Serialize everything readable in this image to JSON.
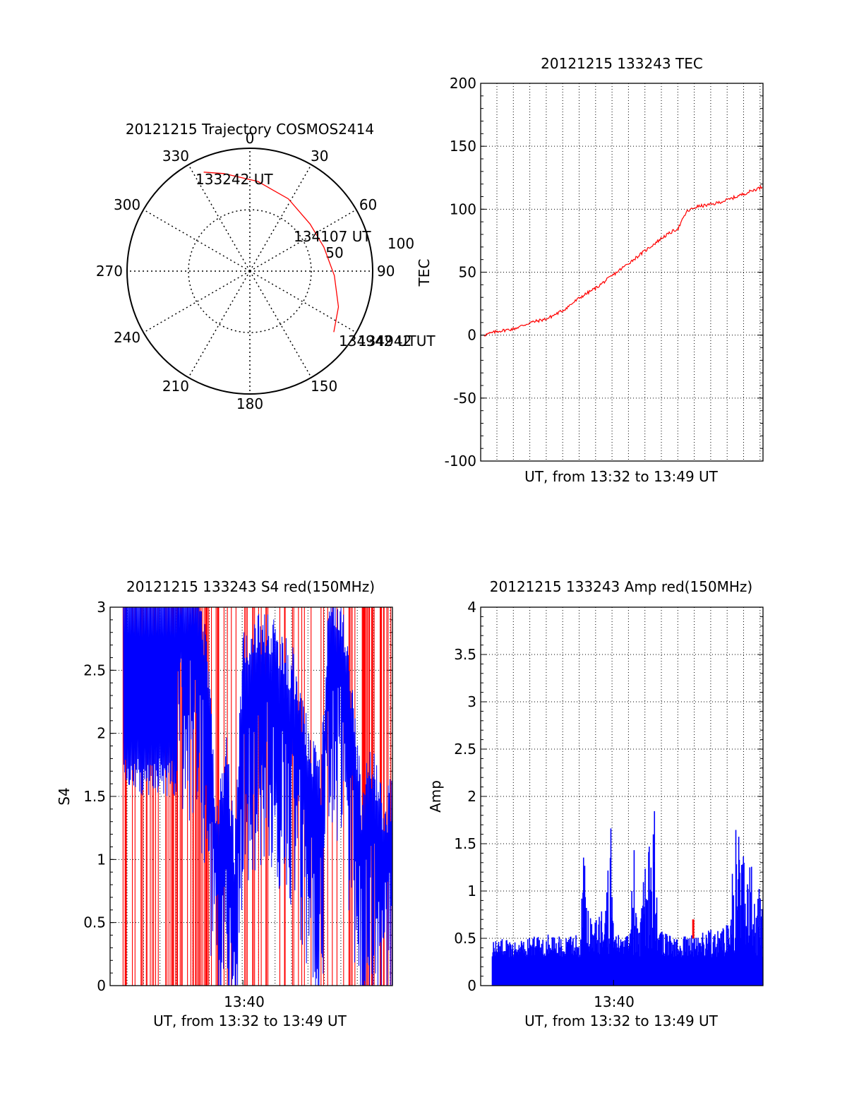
{
  "chart_data": [
    {
      "type": "polar",
      "title": "20121215 Trajectory COSMOS2414",
      "angle_labels": [
        "0",
        "30",
        "60",
        "90",
        "150",
        "180",
        "210",
        "240",
        "270",
        "300",
        "330"
      ],
      "ring_labels": [
        "50",
        "100"
      ],
      "trajectory": {
        "color": "#ff0000",
        "points": [
          {
            "az": 335,
            "el": 10
          },
          {
            "az": 345,
            "el": 16
          },
          {
            "az": 5,
            "el": 24
          },
          {
            "az": 28,
            "el": 30
          },
          {
            "az": 52,
            "el": 34
          },
          {
            "az": 72,
            "el": 33
          },
          {
            "az": 93,
            "el": 28
          },
          {
            "az": 112,
            "el": 20
          },
          {
            "az": 126,
            "el": 14
          }
        ]
      },
      "annotations": [
        "133242 UT",
        "134107 UT",
        "134942 UT",
        "134942 UT"
      ]
    },
    {
      "type": "line",
      "title": "20121215 133243 TEC",
      "ylabel": "TEC",
      "xlabel": "UT, from 13:32 to 13:49 UT",
      "ylim": [
        -100,
        200
      ],
      "yticks": [
        -100,
        -50,
        0,
        50,
        100,
        150,
        200
      ],
      "xlim": [
        0,
        17
      ],
      "color": "#ff0000",
      "series": [
        {
          "x": [
            0.2,
            1,
            2,
            3,
            4,
            5,
            6,
            7,
            8,
            9,
            10,
            11,
            11.9,
            12.4,
            13,
            14,
            15,
            16,
            17
          ],
          "values": [
            0,
            3,
            5,
            10,
            13,
            20,
            30,
            38,
            48,
            58,
            68,
            78,
            85,
            98,
            102,
            104,
            108,
            113,
            118
          ]
        }
      ]
    },
    {
      "type": "line",
      "title": "20121215 133243 S4 red(150MHz)",
      "ylabel": "S4",
      "xlabel": "UT, from 13:32 to 13:49 UT",
      "xticklabels": [
        "13:40"
      ],
      "ylim": [
        0,
        3
      ],
      "yticks": [
        0,
        0.5,
        1,
        1.5,
        2,
        2.5,
        3
      ],
      "xlim": [
        0,
        17
      ],
      "blue_envelope": {
        "x": [
          0.8,
          4,
          5.3,
          6,
          6.4,
          7,
          7.5,
          8,
          9,
          10,
          11,
          12,
          12.7,
          13.2,
          14,
          14.9,
          15.2,
          15.5,
          16,
          16.5,
          17
        ],
        "values": [
          3,
          3,
          3,
          2.1,
          1.0,
          1.7,
          0.8,
          2.5,
          2.6,
          2.5,
          2.3,
          1.7,
          1.4,
          2.9,
          2.7,
          1.6,
          1.1,
          1.6,
          1.4,
          1.1,
          1.3
        ]
      },
      "red_spike_density": [
        1,
        1,
        1,
        0.9,
        0.8,
        0.9,
        0.5,
        0.4,
        0.5,
        0.3,
        0.3,
        0.2,
        0.2,
        0.3,
        0.9,
        1,
        1
      ]
    },
    {
      "type": "bar",
      "title": "20121215 133243 Amp red(150MHz)",
      "ylabel": "Amp",
      "xlabel": "UT, from 13:32 to 13:49 UT",
      "xticklabels": [
        "13:40"
      ],
      "ylim": [
        0,
        4
      ],
      "yticks": [
        0,
        0.5,
        1,
        1.5,
        2,
        2.5,
        3,
        3.5,
        4
      ],
      "xlim": [
        0,
        17
      ],
      "color": "#0000ff",
      "envelope": {
        "x": [
          0.7,
          1.5,
          2,
          3,
          4,
          5,
          6,
          6.2,
          6.4,
          6.8,
          7.5,
          7.8,
          8,
          8.5,
          9,
          9.2,
          9.4,
          10.5,
          10.7,
          11,
          12,
          13,
          14,
          14.5,
          15,
          15.2,
          15.5,
          16,
          16.5,
          17
        ],
        "values": [
          0.45,
          0.5,
          0.45,
          0.5,
          0.55,
          0.5,
          0.55,
          1.5,
          0.9,
          0.6,
          1.0,
          2.1,
          0.6,
          0.5,
          0.55,
          1.7,
          0.6,
          1.9,
          0.6,
          0.55,
          0.5,
          0.55,
          0.6,
          0.6,
          0.7,
          1.5,
          1.65,
          1.4,
          1.2,
          0.9
        ]
      },
      "red_blip": {
        "x": 12.8,
        "value": 0.7
      }
    }
  ]
}
